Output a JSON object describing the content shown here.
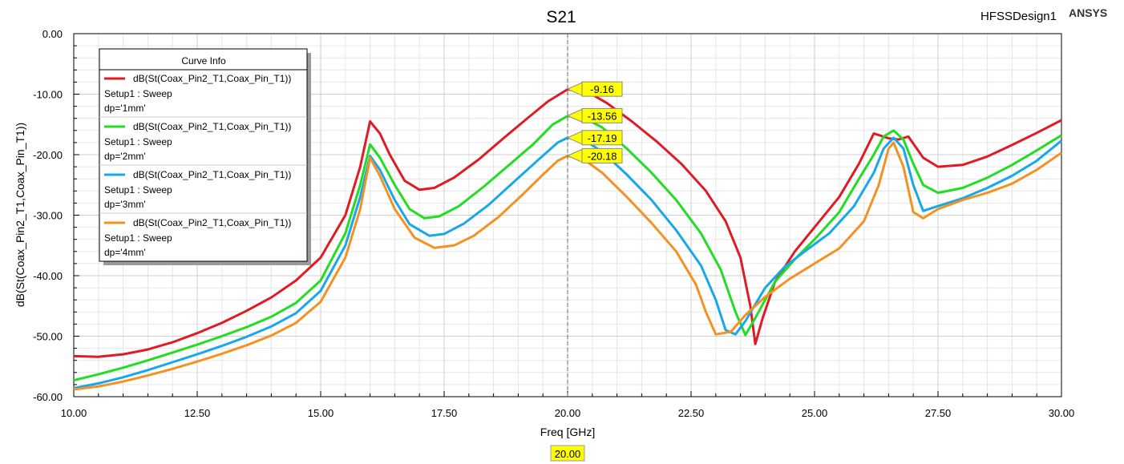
{
  "header": {
    "design": "HFSSDesign1",
    "brand": "ANSYS"
  },
  "legend": {
    "title": "Curve Info"
  },
  "marker": {
    "x_label": "20.00"
  },
  "colors": {
    "series": [
      "#e01b24",
      "#22dd22",
      "#18a8e8",
      "#f39222"
    ],
    "marker_fill": "#ffff00",
    "grid": "#e6e6e6"
  },
  "chart_data": {
    "type": "line",
    "title": "S21",
    "xlabel": "Freq [GHz]",
    "ylabel": "dB(St(Coax_Pin2_T1,Coax_Pin_T1))",
    "xlim": [
      10,
      30
    ],
    "ylim": [
      -60,
      0
    ],
    "xticks": [
      "10.00",
      "12.50",
      "15.00",
      "17.50",
      "20.00",
      "22.50",
      "25.00",
      "27.50",
      "30.00"
    ],
    "yticks": [
      "0.00",
      "-10.00",
      "-20.00",
      "-30.00",
      "-40.00",
      "-50.00",
      "-60.00"
    ],
    "grid": true,
    "legend_position": "top-left",
    "marker_x": 20.0,
    "series": [
      {
        "name": "dB(St(Coax_Pin2_T1,Coax_Pin_T1))",
        "setup": "Setup1 : Sweep",
        "param": "dp='1mm'",
        "marker_value": "-9.16",
        "points": [
          [
            10,
            -53.3
          ],
          [
            10.5,
            -53.4
          ],
          [
            11,
            -53
          ],
          [
            11.5,
            -52.2
          ],
          [
            12,
            -51
          ],
          [
            12.5,
            -49.5
          ],
          [
            13,
            -47.8
          ],
          [
            13.5,
            -45.8
          ],
          [
            14,
            -43.6
          ],
          [
            14.5,
            -40.8
          ],
          [
            15,
            -37
          ],
          [
            15.5,
            -30
          ],
          [
            15.8,
            -22
          ],
          [
            16,
            -14.5
          ],
          [
            16.2,
            -16.5
          ],
          [
            16.4,
            -20
          ],
          [
            16.7,
            -24.3
          ],
          [
            17,
            -25.8
          ],
          [
            17.3,
            -25.5
          ],
          [
            17.7,
            -23.8
          ],
          [
            18.2,
            -20.8
          ],
          [
            18.7,
            -17.3
          ],
          [
            19.2,
            -13.9
          ],
          [
            19.6,
            -11.2
          ],
          [
            20,
            -9.2
          ],
          [
            20.4,
            -9.6
          ],
          [
            20.8,
            -11.5
          ],
          [
            21.3,
            -14.5
          ],
          [
            21.8,
            -17.8
          ],
          [
            22.3,
            -21.5
          ],
          [
            22.8,
            -26
          ],
          [
            23.2,
            -31
          ],
          [
            23.5,
            -37
          ],
          [
            23.7,
            -45
          ],
          [
            23.8,
            -51.3
          ],
          [
            23.95,
            -47
          ],
          [
            24.2,
            -41
          ],
          [
            24.6,
            -36
          ],
          [
            25,
            -32
          ],
          [
            25.5,
            -27
          ],
          [
            25.9,
            -21.5
          ],
          [
            26.2,
            -16.5
          ],
          [
            26.5,
            -17.3
          ],
          [
            26.7,
            -17.5
          ],
          [
            26.9,
            -17
          ],
          [
            27.2,
            -20.5
          ],
          [
            27.5,
            -22
          ],
          [
            28,
            -21.7
          ],
          [
            28.5,
            -20.3
          ],
          [
            29,
            -18.4
          ],
          [
            29.5,
            -16.4
          ],
          [
            30,
            -14.3
          ]
        ]
      },
      {
        "name": "dB(St(Coax_Pin2_T1,Coax_Pin_T1))",
        "setup": "Setup1 : Sweep",
        "param": "dp='2mm'",
        "marker_value": "-13.56",
        "points": [
          [
            10,
            -57.3
          ],
          [
            10.5,
            -56.3
          ],
          [
            11,
            -55.2
          ],
          [
            11.5,
            -54
          ],
          [
            12,
            -52.7
          ],
          [
            12.5,
            -51.4
          ],
          [
            13,
            -50
          ],
          [
            13.5,
            -48.5
          ],
          [
            14,
            -46.8
          ],
          [
            14.5,
            -44.5
          ],
          [
            15,
            -40.8
          ],
          [
            15.5,
            -33
          ],
          [
            15.8,
            -25
          ],
          [
            16,
            -18.3
          ],
          [
            16.2,
            -20.5
          ],
          [
            16.5,
            -25
          ],
          [
            16.8,
            -29
          ],
          [
            17.1,
            -30.5
          ],
          [
            17.4,
            -30.2
          ],
          [
            17.8,
            -28.5
          ],
          [
            18.3,
            -25.3
          ],
          [
            18.8,
            -21.8
          ],
          [
            19.3,
            -18.3
          ],
          [
            19.7,
            -15
          ],
          [
            20,
            -13.6
          ],
          [
            20.3,
            -13.8
          ],
          [
            20.7,
            -15.5
          ],
          [
            21.2,
            -19
          ],
          [
            21.7,
            -23
          ],
          [
            22.2,
            -27.5
          ],
          [
            22.7,
            -33
          ],
          [
            23.1,
            -39
          ],
          [
            23.4,
            -46
          ],
          [
            23.6,
            -49.8
          ],
          [
            23.8,
            -47
          ],
          [
            24.2,
            -41
          ],
          [
            24.6,
            -37.3
          ],
          [
            25,
            -34
          ],
          [
            25.5,
            -29.5
          ],
          [
            25.9,
            -24
          ],
          [
            26.2,
            -20
          ],
          [
            26.4,
            -17
          ],
          [
            26.6,
            -16
          ],
          [
            26.8,
            -17.5
          ],
          [
            27,
            -21.5
          ],
          [
            27.2,
            -25
          ],
          [
            27.5,
            -26.3
          ],
          [
            28,
            -25.5
          ],
          [
            28.5,
            -23.8
          ],
          [
            29,
            -21.7
          ],
          [
            29.5,
            -19.3
          ],
          [
            30,
            -16.8
          ]
        ]
      },
      {
        "name": "dB(St(Coax_Pin2_T1,Coax_Pin_T1))",
        "setup": "Setup1 : Sweep",
        "param": "dp='3mm'",
        "marker_value": "-17.19",
        "points": [
          [
            10,
            -58.6
          ],
          [
            10.5,
            -57.8
          ],
          [
            11,
            -56.8
          ],
          [
            11.5,
            -55.6
          ],
          [
            12,
            -54.3
          ],
          [
            12.5,
            -53
          ],
          [
            13,
            -51.6
          ],
          [
            13.5,
            -50.1
          ],
          [
            14,
            -48.4
          ],
          [
            14.5,
            -46.2
          ],
          [
            15,
            -42.5
          ],
          [
            15.5,
            -35
          ],
          [
            15.8,
            -27
          ],
          [
            16,
            -20.2
          ],
          [
            16.2,
            -22.5
          ],
          [
            16.5,
            -27.5
          ],
          [
            16.8,
            -31.5
          ],
          [
            17.2,
            -33.4
          ],
          [
            17.5,
            -33.1
          ],
          [
            17.9,
            -31.4
          ],
          [
            18.4,
            -28.3
          ],
          [
            18.9,
            -24.6
          ],
          [
            19.4,
            -20.9
          ],
          [
            19.8,
            -18
          ],
          [
            20,
            -17.2
          ],
          [
            20.3,
            -17.4
          ],
          [
            20.7,
            -19.5
          ],
          [
            21.2,
            -23.3
          ],
          [
            21.7,
            -27.5
          ],
          [
            22.2,
            -32.5
          ],
          [
            22.7,
            -38.3
          ],
          [
            23,
            -44
          ],
          [
            23.2,
            -49
          ],
          [
            23.4,
            -49.7
          ],
          [
            23.6,
            -47.5
          ],
          [
            24,
            -42
          ],
          [
            24.4,
            -38.5
          ],
          [
            24.8,
            -36
          ],
          [
            25.3,
            -33
          ],
          [
            25.8,
            -28.5
          ],
          [
            26.2,
            -23
          ],
          [
            26.4,
            -19
          ],
          [
            26.6,
            -17.2
          ],
          [
            26.8,
            -19
          ],
          [
            27,
            -25
          ],
          [
            27.2,
            -29.3
          ],
          [
            27.5,
            -28.5
          ],
          [
            28,
            -27.2
          ],
          [
            28.5,
            -25.5
          ],
          [
            29,
            -23.5
          ],
          [
            29.5,
            -21
          ],
          [
            30,
            -17.7
          ]
        ]
      },
      {
        "name": "dB(St(Coax_Pin2_T1,Coax_Pin_T1))",
        "setup": "Setup1 : Sweep",
        "param": "dp='4mm'",
        "marker_value": "-20.18",
        "points": [
          [
            10,
            -58.8
          ],
          [
            10.5,
            -58.3
          ],
          [
            11,
            -57.5
          ],
          [
            11.5,
            -56.5
          ],
          [
            12,
            -55.4
          ],
          [
            12.5,
            -54.2
          ],
          [
            13,
            -52.9
          ],
          [
            13.5,
            -51.5
          ],
          [
            14,
            -49.9
          ],
          [
            14.5,
            -47.8
          ],
          [
            15,
            -44.3
          ],
          [
            15.5,
            -37
          ],
          [
            15.8,
            -29
          ],
          [
            16,
            -20.5
          ],
          [
            16.2,
            -23.5
          ],
          [
            16.5,
            -29
          ],
          [
            16.9,
            -33.7
          ],
          [
            17.3,
            -35.4
          ],
          [
            17.7,
            -35
          ],
          [
            18.1,
            -33.4
          ],
          [
            18.6,
            -30.3
          ],
          [
            19.1,
            -26.5
          ],
          [
            19.5,
            -23.3
          ],
          [
            19.8,
            -21
          ],
          [
            20,
            -20.2
          ],
          [
            20.3,
            -20.6
          ],
          [
            20.7,
            -23
          ],
          [
            21.2,
            -27
          ],
          [
            21.7,
            -31.3
          ],
          [
            22.2,
            -36
          ],
          [
            22.6,
            -41.5
          ],
          [
            22.8,
            -46
          ],
          [
            23,
            -49.7
          ],
          [
            23.3,
            -49.3
          ],
          [
            23.6,
            -46.5
          ],
          [
            24,
            -43.5
          ],
          [
            24.5,
            -40.5
          ],
          [
            25,
            -38
          ],
          [
            25.5,
            -35.5
          ],
          [
            26,
            -31
          ],
          [
            26.3,
            -25
          ],
          [
            26.5,
            -19
          ],
          [
            26.6,
            -18
          ],
          [
            26.8,
            -22
          ],
          [
            27,
            -29.5
          ],
          [
            27.2,
            -30.5
          ],
          [
            27.5,
            -29
          ],
          [
            28,
            -27.5
          ],
          [
            28.5,
            -26.3
          ],
          [
            29,
            -24.8
          ],
          [
            29.5,
            -22.5
          ],
          [
            30,
            -19.7
          ]
        ]
      }
    ]
  }
}
